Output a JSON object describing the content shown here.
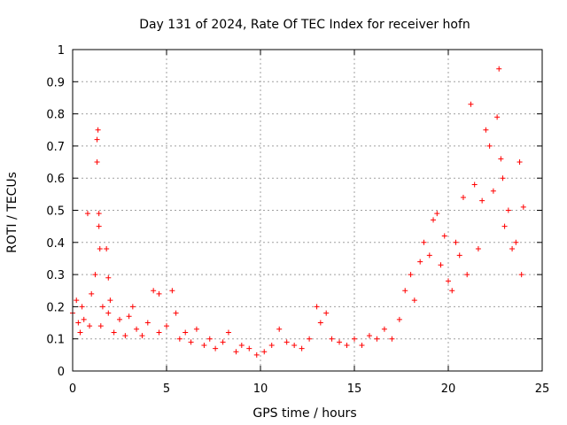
{
  "chart_data": {
    "type": "scatter",
    "title": "Day 131 of 2024, Rate Of TEC Index for receiver hofn",
    "xlabel": "GPS time / hours",
    "ylabel": "ROTI / TECUs",
    "xlim": [
      0,
      25
    ],
    "ylim": [
      0,
      1
    ],
    "xticks": [
      "0",
      "5",
      "10",
      "15",
      "20",
      "25"
    ],
    "yticks": [
      "0",
      "0.1",
      "0.2",
      "0.3",
      "0.4",
      "0.5",
      "0.6",
      "0.7",
      "0.8",
      "0.9",
      "1"
    ],
    "grid": true,
    "marker": "+",
    "color": "#ff0000",
    "series": [
      {
        "name": "ROTI",
        "x": [
          0.0,
          0.2,
          0.3,
          0.4,
          0.5,
          0.6,
          0.8,
          0.9,
          1.0,
          1.2,
          1.3,
          1.3,
          1.35,
          1.4,
          1.4,
          1.45,
          1.5,
          1.6,
          1.8,
          1.9,
          1.9,
          2.0,
          2.2,
          2.5,
          2.8,
          3.0,
          3.2,
          3.4,
          3.7,
          4.0,
          4.3,
          4.6,
          4.6,
          5.0,
          5.3,
          5.5,
          5.7,
          6.0,
          6.3,
          6.6,
          7.0,
          7.3,
          7.6,
          8.0,
          8.3,
          8.7,
          9.0,
          9.4,
          9.8,
          10.2,
          10.6,
          11.0,
          11.4,
          11.8,
          12.2,
          12.6,
          13.0,
          13.2,
          13.5,
          13.8,
          14.2,
          14.6,
          15.0,
          15.4,
          15.8,
          16.2,
          16.6,
          17.0,
          17.4,
          17.7,
          18.0,
          18.2,
          18.5,
          18.7,
          19.0,
          19.2,
          19.4,
          19.6,
          19.8,
          20.0,
          20.2,
          20.4,
          20.6,
          20.8,
          21.0,
          21.2,
          21.4,
          21.6,
          21.8,
          22.0,
          22.2,
          22.4,
          22.6,
          22.7,
          22.8,
          22.9,
          23.0,
          23.2,
          23.4,
          23.6,
          23.8,
          23.9,
          24.0
        ],
        "values": [
          0.18,
          0.22,
          0.15,
          0.12,
          0.2,
          0.16,
          0.49,
          0.14,
          0.24,
          0.3,
          0.65,
          0.72,
          0.75,
          0.49,
          0.45,
          0.38,
          0.14,
          0.2,
          0.38,
          0.29,
          0.18,
          0.22,
          0.12,
          0.16,
          0.11,
          0.17,
          0.2,
          0.13,
          0.11,
          0.15,
          0.25,
          0.24,
          0.12,
          0.14,
          0.25,
          0.18,
          0.1,
          0.12,
          0.09,
          0.13,
          0.08,
          0.1,
          0.07,
          0.09,
          0.12,
          0.06,
          0.08,
          0.07,
          0.05,
          0.06,
          0.08,
          0.13,
          0.09,
          0.08,
          0.07,
          0.1,
          0.2,
          0.15,
          0.18,
          0.1,
          0.09,
          0.08,
          0.1,
          0.08,
          0.11,
          0.1,
          0.13,
          0.1,
          0.16,
          0.25,
          0.3,
          0.22,
          0.34,
          0.4,
          0.36,
          0.47,
          0.49,
          0.33,
          0.42,
          0.28,
          0.25,
          0.4,
          0.36,
          0.54,
          0.3,
          0.83,
          0.58,
          0.38,
          0.53,
          0.75,
          0.7,
          0.56,
          0.79,
          0.94,
          0.66,
          0.6,
          0.45,
          0.5,
          0.38,
          0.4,
          0.65,
          0.3,
          0.51
        ]
      }
    ]
  }
}
